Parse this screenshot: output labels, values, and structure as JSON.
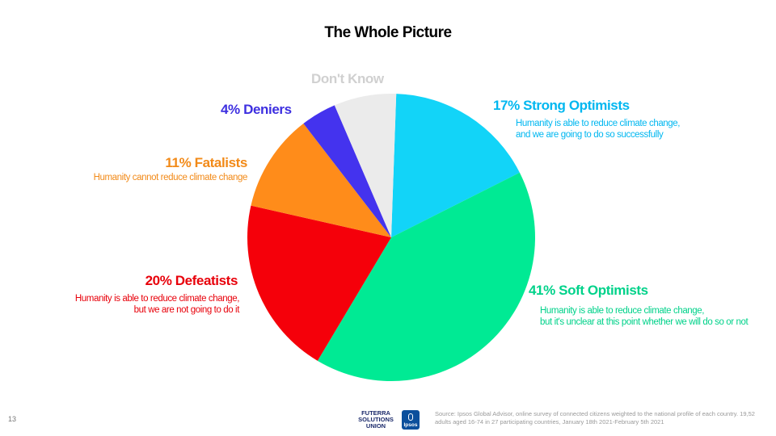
{
  "title": "The Whole Picture",
  "chart_data": {
    "type": "pie",
    "title": "The Whole Picture",
    "slices": [
      {
        "key": "strong",
        "label": "17% Strong Optimists",
        "value": 17,
        "color": "#12d4f8",
        "description": [
          "Humanity is able to reduce climate change,",
          "and we are going to do so successfully"
        ]
      },
      {
        "key": "soft",
        "label": "41% Soft Optimists",
        "value": 41,
        "color": "#00ea94",
        "description": [
          "Humanity is able to reduce climate change,",
          "but it's unclear at this point whether we will do so or not"
        ]
      },
      {
        "key": "defeat",
        "label": "20%  Defeatists",
        "value": 20,
        "color": "#f5000a",
        "description": [
          "Humanity is able to reduce climate change,",
          "but we are not going to do it"
        ]
      },
      {
        "key": "fatal",
        "label": "11% Fatalists",
        "value": 11,
        "color": "#ff8c1a",
        "description": [
          "Humanity cannot reduce climate change"
        ]
      },
      {
        "key": "deniers",
        "label": "4% Deniers",
        "value": 4,
        "color": "#4433ee",
        "description": []
      },
      {
        "key": "dk",
        "label": "Don't Know",
        "value": 7,
        "color": "#ebebeb",
        "description": []
      }
    ]
  },
  "labels_text_color": {
    "strong": "#00b7f0",
    "soft": "#00d28a",
    "defeat": "#e8000a",
    "fatal": "#f28a18",
    "deniers": "#3d2fe0",
    "dk": "#d0d0d0"
  },
  "footer": {
    "page_number": "13",
    "logo_futerra": "FUTERRA SOLUTIONS UNION",
    "logo_ipsos": "Ipsos",
    "source": "Source: Ipsos Global Advisor, online survey of connected citizens weighted to the national profile of each country. 19,52",
    "source_line2": "adults aged 16-74 in 27 participating countries, January 18th 2021-February 5th 2021"
  }
}
